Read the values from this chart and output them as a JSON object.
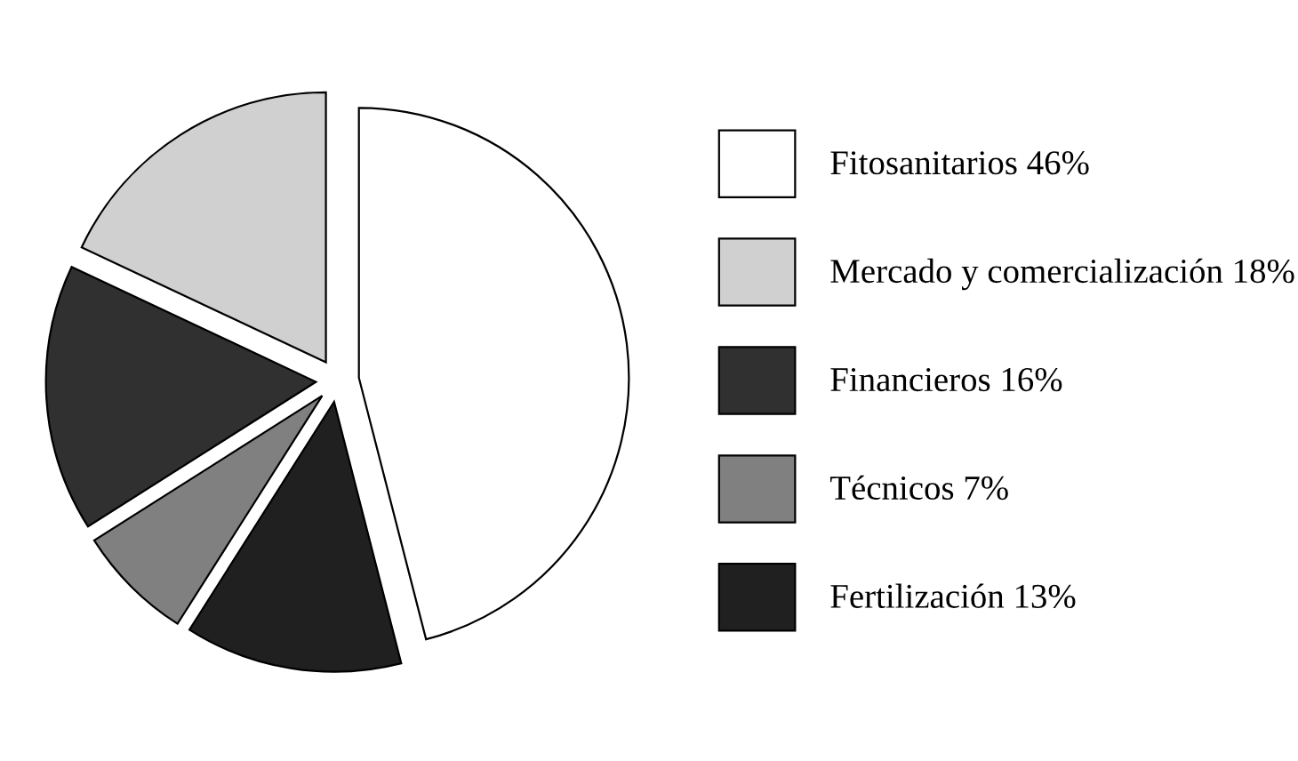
{
  "chart_data": {
    "type": "pie",
    "categories": [
      "Fitosanitarios",
      "Mercado y comercialización",
      "Financieros",
      "Técnicos",
      "Fertilización"
    ],
    "values": [
      46,
      18,
      16,
      7,
      13
    ],
    "value_labels": [
      "46%",
      "18%",
      "16%",
      "7%",
      "13%"
    ],
    "colors": [
      "#ffffff",
      "#d0d0d0",
      "#303030",
      "#808080",
      "#202020"
    ],
    "legend": "right"
  }
}
